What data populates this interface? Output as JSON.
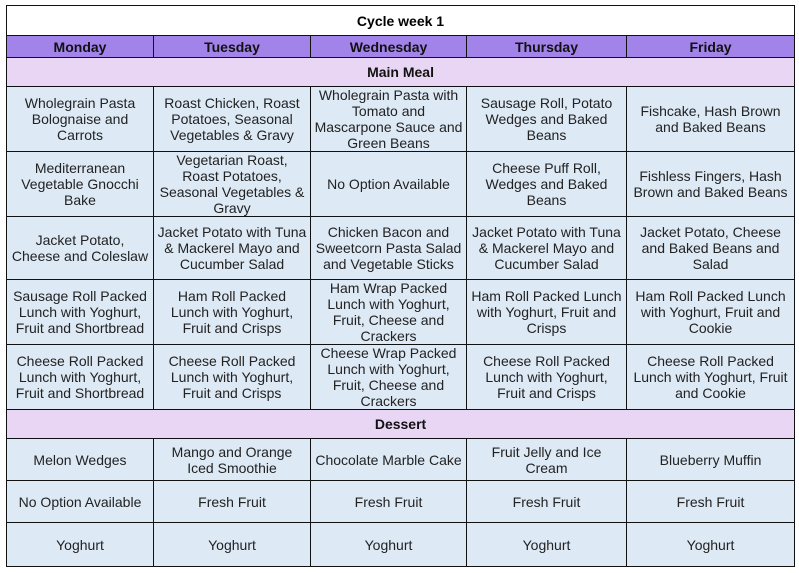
{
  "title": "Cycle week 1",
  "days": [
    "Monday",
    "Tuesday",
    "Wednesday",
    "Thursday",
    "Friday"
  ],
  "sections": [
    {
      "label": "Main Meal",
      "rows": [
        [
          "Wholegrain Pasta Bolognaise and Carrots",
          "Roast Chicken, Roast Potatoes, Seasonal Vegetables & Gravy",
          "Wholegrain Pasta with Tomato and Mascarpone Sauce and Green Beans",
          "Sausage Roll, Potato Wedges and Baked Beans",
          "Fishcake, Hash Brown and Baked Beans"
        ],
        [
          "Mediterranean Vegetable Gnocchi Bake",
          "Vegetarian Roast, Roast Potatoes, Seasonal Vegetables & Gravy",
          "No Option Available",
          "Cheese Puff Roll, Wedges and Baked Beans",
          "Fishless Fingers, Hash Brown and Baked Beans"
        ],
        [
          "Jacket Potato, Cheese and Coleslaw",
          "Jacket Potato with Tuna & Mackerel Mayo and Cucumber Salad",
          "Chicken Bacon and Sweetcorn Pasta Salad and Vegetable Sticks",
          "Jacket Potato with Tuna & Mackerel Mayo and Cucumber Salad",
          "Jacket Potato, Cheese and Baked Beans and Salad"
        ],
        [
          "Sausage Roll Packed Lunch with Yoghurt, Fruit and Shortbread",
          "Ham Roll Packed Lunch with Yoghurt, Fruit and Crisps",
          "Ham Wrap Packed Lunch with Yoghurt, Fruit, Cheese and Crackers",
          "Ham Roll Packed Lunch with Yoghurt, Fruit and Crisps",
          "Ham Roll Packed Lunch with Yoghurt, Fruit and Cookie"
        ],
        [
          "Cheese Roll Packed Lunch with Yoghurt, Fruit and Shortbread",
          "Cheese Roll Packed Lunch with Yoghurt, Fruit and Crisps",
          "Cheese Wrap Packed Lunch with Yoghurt, Fruit, Cheese and Crackers",
          "Cheese Roll Packed Lunch with Yoghurt, Fruit and Crisps",
          "Cheese Roll Packed Lunch with Yoghurt, Fruit and Cookie"
        ]
      ]
    },
    {
      "label": "Dessert",
      "rows": [
        [
          "Melon Wedges",
          "Mango and Orange Iced Smoothie",
          "Chocolate Marble Cake",
          "Fruit Jelly and Ice Cream",
          "Blueberry Muffin"
        ],
        [
          "No Option Available",
          "Fresh Fruit",
          "Fresh Fruit",
          "Fresh Fruit",
          "Fresh Fruit"
        ],
        [
          "Yoghurt",
          "Yoghurt",
          "Yoghurt",
          "Yoghurt",
          "Yoghurt"
        ]
      ]
    }
  ],
  "colors": {
    "header": "#a283ea",
    "section": "#e9d6f4",
    "cell": "#dde9f5"
  }
}
